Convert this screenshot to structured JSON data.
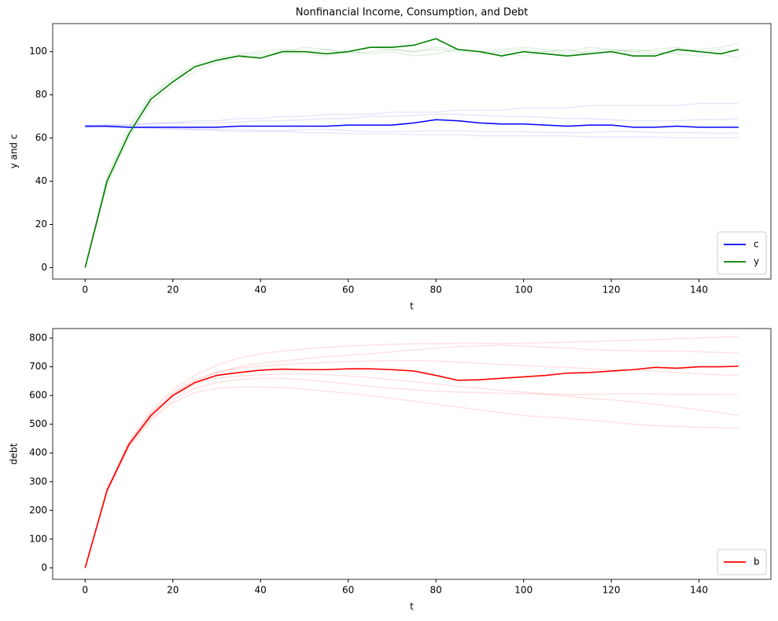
{
  "chart_data": [
    {
      "type": "line",
      "title": "Nonfinancial Income, Consumption, and Debt",
      "xlabel": "t",
      "ylabel": "y and c",
      "x": [
        0,
        5,
        10,
        15,
        20,
        25,
        30,
        35,
        40,
        45,
        50,
        55,
        60,
        65,
        70,
        75,
        80,
        85,
        90,
        95,
        100,
        105,
        110,
        115,
        120,
        125,
        130,
        135,
        140,
        145,
        149
      ],
      "xlim": [
        -7.4,
        156.4
      ],
      "ylim": [
        -5.3,
        113
      ],
      "xticks": [
        0,
        20,
        40,
        60,
        80,
        100,
        120,
        140
      ],
      "yticks": [
        0,
        20,
        40,
        60,
        80,
        100
      ],
      "legend": "lower right",
      "series": [
        {
          "color": "#0000ff",
          "alpha": 0.1,
          "values": [
            65,
            66,
            66,
            67,
            67,
            68,
            68,
            69,
            69,
            70,
            70,
            71,
            71,
            71,
            72,
            72,
            72,
            73,
            73,
            73,
            74,
            74,
            74,
            75,
            75,
            75,
            75,
            75,
            76,
            76,
            76
          ]
        },
        {
          "color": "#0000ff",
          "alpha": 0.1,
          "values": [
            65,
            65,
            65,
            64.5,
            64,
            64,
            63.5,
            63,
            63,
            63,
            62.5,
            62.5,
            62,
            62,
            62,
            61.5,
            61.5,
            61.5,
            61,
            61,
            61,
            61,
            61,
            60.5,
            60.5,
            60.5,
            60.5,
            60,
            60,
            60,
            60
          ]
        },
        {
          "color": "#0000ff",
          "alpha": 0.1,
          "values": [
            66,
            66,
            66,
            66.5,
            67,
            67,
            67,
            67.5,
            68,
            68,
            68.5,
            69,
            69,
            70,
            70,
            70.5,
            71,
            71,
            70.5,
            70,
            70,
            69.5,
            69,
            69,
            68.5,
            68,
            68,
            68,
            68.5,
            68.5,
            69
          ]
        },
        {
          "color": "#0000ff",
          "alpha": 0.1,
          "values": [
            65.5,
            65.5,
            65,
            65,
            64.5,
            64,
            64,
            64,
            63.5,
            63.5,
            64,
            64,
            63.5,
            63,
            63,
            63,
            63.5,
            63.5,
            63,
            63,
            63,
            62.5,
            62.5,
            62.5,
            63,
            63,
            62.5,
            62.5,
            62.5,
            62,
            62.5
          ]
        },
        {
          "color": "#008000",
          "alpha": 0.12,
          "values": [
            0,
            42,
            65,
            80,
            88,
            94,
            97,
            99,
            100,
            101,
            100,
            101,
            99,
            100,
            101,
            100,
            101,
            100,
            99,
            100,
            101,
            100,
            99,
            100,
            101,
            100,
            99,
            100,
            101,
            102,
            104
          ]
        },
        {
          "color": "#008000",
          "alpha": 0.12,
          "values": [
            0,
            38,
            60,
            76,
            84,
            91,
            95,
            97,
            98,
            99,
            99,
            98,
            100,
            99,
            100,
            98,
            99,
            101,
            100,
            99,
            98,
            100,
            101,
            99,
            100,
            101,
            100,
            99,
            98,
            99,
            97
          ]
        },
        {
          "color": "#008000",
          "alpha": 0.12,
          "values": [
            0,
            41,
            63,
            79,
            87,
            93,
            96,
            98,
            99,
            100,
            102,
            101,
            100,
            102,
            101,
            100,
            102,
            101,
            100,
            101,
            102,
            101,
            100,
            102,
            101,
            100,
            101,
            102,
            100,
            101,
            100
          ]
        },
        {
          "name": "c",
          "color": "#0000ff",
          "values": [
            65.5,
            65.5,
            65,
            65,
            65,
            65,
            65,
            65.5,
            65.5,
            65.5,
            65.5,
            65.5,
            66,
            66,
            66,
            67,
            68.5,
            68,
            67,
            66.5,
            66.5,
            66,
            65.5,
            66,
            66,
            65,
            65,
            65.5,
            65,
            65,
            65
          ]
        },
        {
          "name": "y",
          "color": "#008000",
          "values": [
            0,
            40,
            62,
            78,
            86,
            93,
            96,
            98,
            97,
            100,
            100,
            99,
            100,
            102,
            102,
            103,
            106,
            101,
            100,
            98,
            100,
            99,
            98,
            99,
            100,
            98,
            98,
            101,
            100,
            99,
            101
          ]
        }
      ]
    },
    {
      "type": "line",
      "xlabel": "t",
      "ylabel": "debt",
      "x": [
        0,
        5,
        10,
        15,
        20,
        25,
        30,
        35,
        40,
        45,
        50,
        55,
        60,
        65,
        70,
        75,
        80,
        85,
        90,
        95,
        100,
        105,
        110,
        115,
        120,
        125,
        130,
        135,
        140,
        145,
        149
      ],
      "xlim": [
        -7.4,
        156.4
      ],
      "ylim": [
        -40,
        833
      ],
      "xticks": [
        0,
        20,
        40,
        60,
        80,
        100,
        120,
        140
      ],
      "yticks": [
        0,
        100,
        200,
        300,
        400,
        500,
        600,
        700,
        800
      ],
      "legend": "lower right",
      "series": [
        {
          "color": "#ff0000",
          "alpha": 0.12,
          "values": [
            0,
            275,
            440,
            545,
            620,
            670,
            705,
            730,
            745,
            755,
            762,
            768,
            772,
            775,
            778,
            780,
            780,
            782,
            782,
            780,
            782,
            784,
            786,
            788,
            790,
            792,
            795,
            798,
            800,
            803,
            805
          ]
        },
        {
          "color": "#ff0000",
          "alpha": 0.12,
          "values": [
            0,
            265,
            420,
            515,
            575,
            610,
            625,
            630,
            630,
            628,
            622,
            615,
            608,
            600,
            590,
            580,
            570,
            560,
            550,
            540,
            530,
            525,
            520,
            515,
            508,
            500,
            495,
            492,
            490,
            488,
            485
          ]
        },
        {
          "color": "#ff0000",
          "alpha": 0.12,
          "values": [
            0,
            270,
            432,
            535,
            605,
            650,
            680,
            700,
            712,
            720,
            728,
            735,
            740,
            745,
            752,
            758,
            765,
            770,
            773,
            775,
            772,
            768,
            765,
            760,
            758,
            756,
            755,
            755,
            752,
            750,
            748
          ]
        },
        {
          "color": "#ff0000",
          "alpha": 0.12,
          "values": [
            0,
            268,
            425,
            522,
            585,
            625,
            645,
            655,
            660,
            660,
            655,
            648,
            640,
            632,
            625,
            620,
            615,
            612,
            610,
            608,
            606,
            605,
            604,
            604,
            605,
            606,
            605,
            604,
            604,
            603,
            603
          ]
        },
        {
          "color": "#ff0000",
          "alpha": 0.12,
          "values": [
            0,
            272,
            435,
            538,
            610,
            655,
            682,
            695,
            702,
            708,
            712,
            715,
            718,
            720,
            722,
            722,
            720,
            716,
            712,
            708,
            705,
            700,
            698,
            694,
            690,
            688,
            685,
            680,
            676,
            672,
            670
          ]
        },
        {
          "color": "#ff0000",
          "alpha": 0.12,
          "values": [
            0,
            266,
            428,
            530,
            598,
            640,
            660,
            668,
            672,
            675,
            675,
            672,
            668,
            662,
            655,
            648,
            640,
            632,
            625,
            618,
            612,
            605,
            598,
            590,
            585,
            578,
            570,
            560,
            550,
            540,
            530
          ]
        },
        {
          "name": "b",
          "color": "#ff0000",
          "values": [
            0,
            270,
            430,
            530,
            600,
            645,
            670,
            680,
            688,
            692,
            690,
            690,
            693,
            693,
            690,
            685,
            670,
            653,
            655,
            660,
            665,
            670,
            678,
            680,
            685,
            690,
            698,
            695,
            700,
            700,
            702
          ]
        }
      ]
    }
  ]
}
